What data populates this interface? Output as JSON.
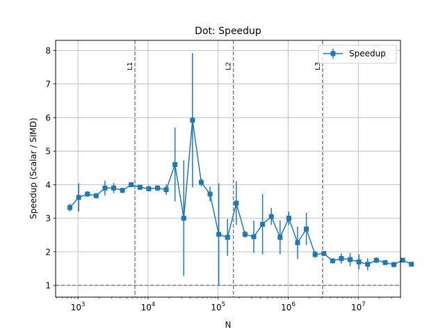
{
  "chart_data": {
    "type": "line",
    "title": "Dot: Speedup",
    "xlabel": "N",
    "ylabel": "Speedup (Scalar / SIMD)",
    "xscale": "log",
    "xlim": [
      480,
      40000000
    ],
    "ylim": [
      0.65,
      8.3
    ],
    "grid": true,
    "legend": {
      "position": "top-right",
      "entries": [
        "Speedup"
      ]
    },
    "series_color": "#1f77b4",
    "reference_line": {
      "y": 1.0,
      "style": "dashed",
      "color": "#808080"
    },
    "vertical_lines": [
      {
        "label": "L1",
        "x": 6500
      },
      {
        "label": "L2",
        "x": 165000
      },
      {
        "label": "L3",
        "x": 3100000
      }
    ],
    "yticks": [
      1,
      2,
      3,
      4,
      5,
      6,
      7,
      8
    ],
    "xticks": [
      {
        "value": 1000,
        "base": "10",
        "exp": "3"
      },
      {
        "value": 10000,
        "base": "10",
        "exp": "4"
      },
      {
        "value": 100000,
        "base": "10",
        "exp": "5"
      },
      {
        "value": 1000000,
        "base": "10",
        "exp": "6"
      },
      {
        "value": 10000000,
        "base": "10",
        "exp": "7"
      }
    ],
    "series": [
      {
        "name": "Speedup",
        "points": [
          {
            "x": 768,
            "y": 3.32,
            "err": 0.12
          },
          {
            "x": 1024,
            "y": 3.62,
            "err": 0.42
          },
          {
            "x": 1365,
            "y": 3.72,
            "err": 0.08
          },
          {
            "x": 1820,
            "y": 3.67,
            "err": 0.08
          },
          {
            "x": 2427,
            "y": 3.9,
            "err": 0.22
          },
          {
            "x": 3236,
            "y": 3.9,
            "err": 0.15
          },
          {
            "x": 4315,
            "y": 3.83,
            "err": 0.08
          },
          {
            "x": 5753,
            "y": 4.0,
            "err": 0.05
          },
          {
            "x": 7670,
            "y": 3.92,
            "err": 0.08
          },
          {
            "x": 10227,
            "y": 3.88,
            "err": 0.08
          },
          {
            "x": 13636,
            "y": 3.9,
            "err": 0.08
          },
          {
            "x": 18182,
            "y": 3.85,
            "err": 0.15
          },
          {
            "x": 24242,
            "y": 4.6,
            "err": 1.1
          },
          {
            "x": 32323,
            "y": 3.0,
            "err": 1.72
          },
          {
            "x": 43097,
            "y": 5.92,
            "err": 2.0
          },
          {
            "x": 57463,
            "y": 4.07,
            "err": 0.12
          },
          {
            "x": 76617,
            "y": 3.72,
            "err": 0.22
          },
          {
            "x": 102156,
            "y": 2.52,
            "err": 1.52
          },
          {
            "x": 136208,
            "y": 2.43,
            "err": 0.55
          },
          {
            "x": 181611,
            "y": 3.45,
            "err": 0.65
          },
          {
            "x": 242148,
            "y": 2.52,
            "err": 0.1
          },
          {
            "x": 322864,
            "y": 2.45,
            "err": 0.48
          },
          {
            "x": 430485,
            "y": 2.82,
            "err": 0.9
          },
          {
            "x": 573980,
            "y": 3.05,
            "err": 0.25
          },
          {
            "x": 765307,
            "y": 2.43,
            "err": 0.5
          },
          {
            "x": 1020409,
            "y": 3.0,
            "err": 0.2
          },
          {
            "x": 1360545,
            "y": 2.27,
            "err": 0.48
          },
          {
            "x": 1814060,
            "y": 2.68,
            "err": 0.48
          },
          {
            "x": 2418747,
            "y": 1.92,
            "err": 0.1
          },
          {
            "x": 3224996,
            "y": 1.95,
            "err": 0.05
          },
          {
            "x": 4299995,
            "y": 1.73,
            "err": 0.05
          },
          {
            "x": 5733327,
            "y": 1.8,
            "err": 0.15
          },
          {
            "x": 7644436,
            "y": 1.77,
            "err": 0.2
          },
          {
            "x": 10192581,
            "y": 1.7,
            "err": 0.22
          },
          {
            "x": 13590108,
            "y": 1.63,
            "err": 0.18
          },
          {
            "x": 18120144,
            "y": 1.75,
            "err": 0.08
          },
          {
            "x": 24160192,
            "y": 1.68,
            "err": 0.05
          },
          {
            "x": 32213589,
            "y": 1.62,
            "err": 0.08
          },
          {
            "x": 42951452,
            "y": 1.75,
            "err": 0.05
          },
          {
            "x": 57268603,
            "y": 1.63,
            "err": 0.05
          }
        ]
      }
    ]
  }
}
